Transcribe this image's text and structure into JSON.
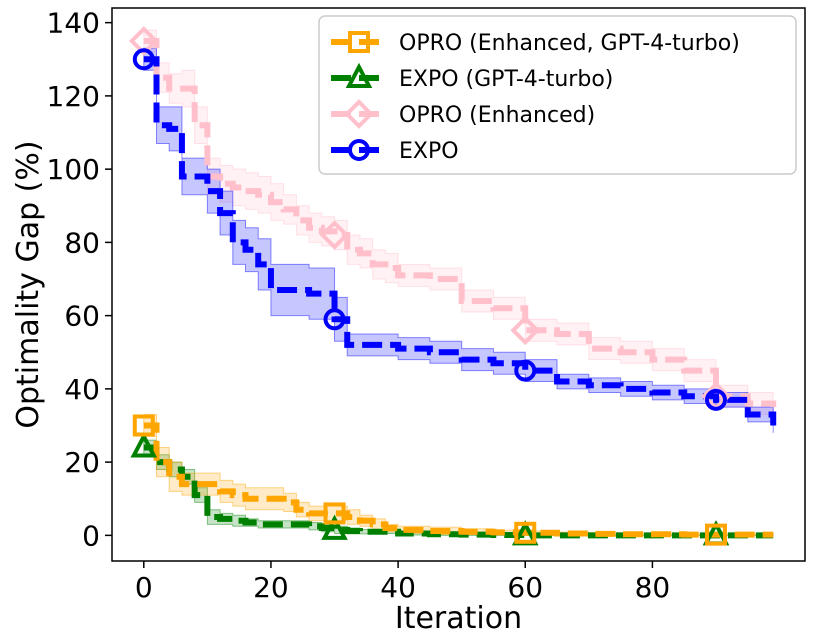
{
  "chart_data": {
    "type": "line",
    "title": "",
    "xlabel": "Iteration",
    "ylabel": "Optimality Gap (%)",
    "xlim": [
      -5,
      104
    ],
    "ylim": [
      -7,
      144
    ],
    "xticks": [
      0,
      20,
      40,
      60,
      80
    ],
    "yticks": [
      0,
      20,
      40,
      60,
      80,
      100,
      120,
      140
    ],
    "grid": false,
    "legend_position": "top-right",
    "series": [
      {
        "name": "OPRO (Enhanced, GPT-4-turbo)",
        "color": "#FFA500",
        "marker": "square",
        "marker_x": [
          0,
          30,
          60,
          90
        ],
        "x": [
          0,
          2,
          4,
          6,
          8,
          10,
          12,
          14,
          16,
          18,
          20,
          22,
          24,
          26,
          28,
          30,
          32,
          34,
          36,
          38,
          40,
          45,
          50,
          55,
          60,
          65,
          70,
          75,
          80,
          85,
          90,
          95,
          99
        ],
        "y": [
          30,
          20,
          16,
          14,
          14,
          14,
          12,
          11,
          10,
          10,
          10,
          9,
          7,
          6,
          6,
          6,
          5,
          4,
          3,
          2,
          1.5,
          1.2,
          1,
          0.8,
          0.7,
          0.5,
          0.4,
          0.3,
          0.3,
          0.2,
          0.2,
          0.2,
          0.2
        ],
        "band": [
          3,
          4,
          4,
          3,
          3,
          3,
          3,
          3,
          3,
          3,
          3,
          2.5,
          2,
          2,
          2,
          2,
          2,
          1.5,
          1.5,
          1,
          1,
          1,
          0.8,
          0.6,
          0.5,
          0.4,
          0.3,
          0.3,
          0.3,
          0.2,
          0.2,
          0.2,
          0.2
        ]
      },
      {
        "name": "EXPO (GPT-4-turbo)",
        "color": "#008000",
        "marker": "triangle",
        "marker_x": [
          0,
          30,
          60,
          90
        ],
        "x": [
          0,
          2,
          4,
          6,
          8,
          10,
          12,
          14,
          16,
          18,
          20,
          22,
          24,
          26,
          28,
          30,
          32,
          34,
          36,
          38,
          40,
          45,
          50,
          55,
          60,
          65,
          70,
          75,
          80,
          85,
          90,
          95,
          99
        ],
        "y": [
          24,
          20,
          18,
          16,
          11,
          5,
          4.5,
          4,
          3.5,
          3,
          3,
          3,
          3,
          2.5,
          2,
          1.5,
          1.2,
          1,
          1,
          1,
          0.5,
          0.3,
          0.2,
          0.1,
          0,
          0,
          0,
          0,
          0,
          0,
          0,
          0,
          0
        ],
        "band": [
          2,
          2,
          2,
          2,
          2,
          2,
          1.5,
          1.5,
          1,
          1,
          1,
          1,
          1,
          1,
          1,
          1,
          0.8,
          0.6,
          0.5,
          0.5,
          0.4,
          0.3,
          0.2,
          0.1,
          0,
          0,
          0,
          0,
          0,
          0,
          0,
          0,
          0
        ]
      },
      {
        "name": "OPRO (Enhanced)",
        "color": "#FFC0CB",
        "marker": "diamond",
        "marker_x": [
          0,
          30,
          60,
          90
        ],
        "x": [
          0,
          2,
          4,
          6,
          8,
          10,
          12,
          14,
          16,
          18,
          20,
          22,
          24,
          26,
          28,
          30,
          32,
          34,
          36,
          38,
          40,
          45,
          50,
          55,
          60,
          65,
          70,
          75,
          80,
          85,
          90,
          95,
          99
        ],
        "y": [
          135,
          125,
          122,
          122,
          112,
          98,
          96,
          95,
          94,
          93,
          91,
          89,
          86,
          84,
          83,
          82,
          78,
          77,
          74,
          73,
          71,
          70,
          64,
          62,
          56,
          55,
          51,
          50,
          48,
          45,
          38,
          36,
          35
        ],
        "band": [
          3,
          4,
          4,
          5,
          5,
          5,
          5,
          5,
          5,
          5,
          5,
          4,
          4,
          4,
          4,
          4,
          4,
          4,
          4,
          4,
          3,
          3,
          3,
          3,
          3,
          3,
          3,
          3,
          3,
          3,
          3,
          3,
          3
        ]
      },
      {
        "name": "EXPO",
        "color": "#0000FF",
        "marker": "circle",
        "marker_x": [
          0,
          30,
          60,
          90
        ],
        "x": [
          0,
          2,
          4,
          6,
          8,
          10,
          12,
          14,
          16,
          18,
          20,
          22,
          24,
          26,
          28,
          30,
          32,
          34,
          36,
          38,
          40,
          45,
          50,
          55,
          60,
          65,
          70,
          75,
          80,
          85,
          90,
          95,
          99
        ],
        "y": [
          130,
          112,
          111,
          98,
          98,
          94,
          88,
          80,
          78,
          74,
          67,
          67,
          67,
          66,
          66,
          59,
          52,
          52,
          52,
          52,
          51,
          50,
          48,
          47,
          45,
          42,
          41,
          40,
          39,
          38,
          37,
          33,
          30
        ],
        "band": [
          3,
          5,
          6,
          5,
          5,
          6,
          6,
          6,
          6,
          7,
          7,
          7,
          7,
          7,
          7,
          6,
          3,
          3,
          3,
          3,
          3,
          3,
          3,
          3,
          3,
          2,
          2,
          2,
          2,
          2,
          2,
          2,
          2
        ]
      }
    ]
  }
}
